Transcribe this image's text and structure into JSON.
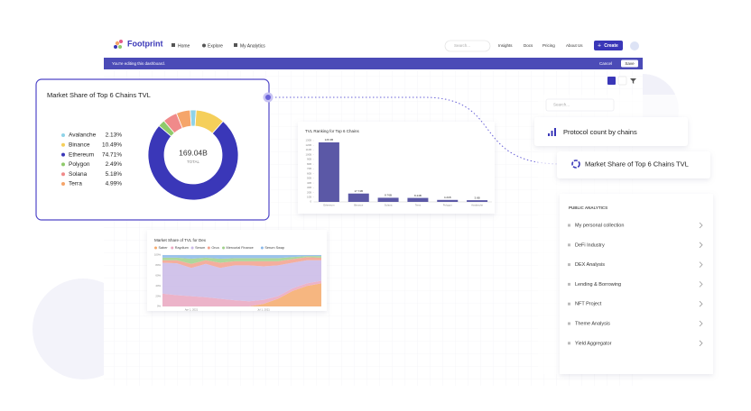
{
  "nav": {
    "brand": "Footprint",
    "links": [
      "Home",
      "Explore",
      "My Analytics"
    ],
    "search_placeholder": "Search...",
    "menu": [
      "Insights",
      "Docs",
      "Pricing",
      "About Us"
    ],
    "create_button": "Create"
  },
  "edit_bar": {
    "message": "You're editing this dashboard.",
    "cancel": "Cancel",
    "save": "Save"
  },
  "sidebar": {
    "search_placeholder": "Search...",
    "cards": [
      "Protocol count by chains",
      "Market Share of Top 6 Chains TVL"
    ],
    "section_title": "PUBLIC ANALYTICS",
    "items": [
      "My personal collection",
      "DeFi Industry",
      "DEX Analysis",
      "Lending & Borrowing",
      "NFT Project",
      "Theme Analysis",
      "Yield Aggregator"
    ]
  },
  "chart_data": [
    {
      "type": "pie",
      "title": "Market Share of Top 6 Chains TVL",
      "categories": [
        "Avalanche",
        "Binance",
        "Ethereum",
        "Polygon",
        "Solana",
        "Terra"
      ],
      "values": [
        2.13,
        10.49,
        74.71,
        2.49,
        5.18,
        4.99
      ],
      "value_labels": [
        "2.13%",
        "10.49%",
        "74.71%",
        "2.49%",
        "5.18%",
        "4.99%"
      ],
      "colors": [
        "#8fd3e8",
        "#f5cf5a",
        "#3a37b8",
        "#8fca6b",
        "#f08a8a",
        "#f5a56a"
      ],
      "center_value": "169.04B",
      "center_label": "TOTAL"
    },
    {
      "type": "bar",
      "title": "TVL Ranking for Top 6 Chains",
      "categories": [
        "Ethereum",
        "Binance",
        "Solana",
        "Terra",
        "Polygon",
        "Avalanche"
      ],
      "values": [
        126.3,
        17.74,
        8.76,
        8.44,
        4.21,
        3.6
      ],
      "value_labels": [
        "126.3B",
        "17.74B",
        "8.76B",
        "8.44B",
        "4.21B",
        "3.6B"
      ],
      "color": "#5b58a6",
      "ylim": [
        0,
        130
      ],
      "yticks": [
        0,
        {
          "value": 10,
          "label": "10B"
        },
        {
          "value": 20,
          "label": "20B"
        },
        {
          "value": 30,
          "label": "30B"
        },
        {
          "value": 40,
          "label": "40B"
        },
        {
          "value": 50,
          "label": "50B"
        },
        {
          "value": 60,
          "label": "60B"
        },
        {
          "value": 70,
          "label": "70B"
        },
        {
          "value": 80,
          "label": "80B"
        },
        {
          "value": 90,
          "label": "90B"
        },
        {
          "value": 100,
          "label": "100B"
        },
        {
          "value": 110,
          "label": "110B"
        },
        {
          "value": 120,
          "label": "120B"
        },
        {
          "value": 130,
          "label": "130B"
        }
      ]
    },
    {
      "type": "area",
      "stacked": true,
      "title": "Market Share of TVL for Dex",
      "categories": [
        null,
        null,
        "Apr 1, 2021",
        null,
        null,
        null,
        null,
        "Jul 1, 2021",
        null,
        null,
        null,
        null
      ],
      "series": [
        {
          "name": "Saber",
          "color": "#f5a96a",
          "values": [
            0,
            0,
            0,
            0,
            0,
            0,
            0,
            5,
            15,
            30,
            40,
            45
          ]
        },
        {
          "name": "Raydium",
          "color": "#e9a6c0",
          "values": [
            25,
            22,
            20,
            18,
            15,
            12,
            10,
            8,
            5,
            5,
            5,
            5
          ]
        },
        {
          "name": "Serum",
          "color": "#c9b8e6",
          "values": [
            60,
            62,
            55,
            65,
            60,
            68,
            70,
            65,
            60,
            50,
            45,
            40
          ]
        },
        {
          "name": "Orca",
          "color": "#f2a08c",
          "values": [
            5,
            6,
            8,
            7,
            10,
            8,
            8,
            10,
            8,
            7,
            6,
            5
          ]
        },
        {
          "name": "Mercurial Finance",
          "color": "#9fd08a",
          "values": [
            5,
            5,
            10,
            5,
            8,
            6,
            6,
            6,
            6,
            4,
            2,
            3
          ]
        },
        {
          "name": "Serum Swap",
          "color": "#8ab8e8",
          "values": [
            5,
            5,
            7,
            5,
            7,
            6,
            6,
            6,
            6,
            4,
            2,
            2
          ]
        }
      ],
      "ylim": [
        0,
        100
      ],
      "yticks": [
        {
          "value": 0,
          "label": "0%"
        },
        {
          "value": 20,
          "label": "20%"
        },
        {
          "value": 40,
          "label": "40%"
        },
        {
          "value": 60,
          "label": "60%"
        },
        {
          "value": 80,
          "label": "80%"
        },
        {
          "value": 100,
          "label": "100%"
        }
      ],
      "grid": true
    }
  ]
}
